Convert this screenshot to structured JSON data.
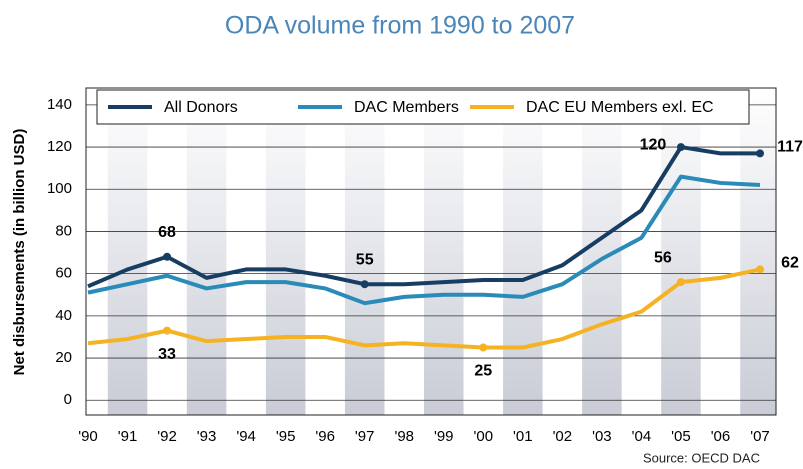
{
  "chart_data": {
    "type": "line",
    "title": "ODA volume from 1990 to 2007",
    "y_label": "Net disbursements (in billion USD)",
    "source": "Source: OECD DAC",
    "categories": [
      "'90",
      "'91",
      "'92",
      "'93",
      "'94",
      "'95",
      "'96",
      "'97",
      "'98",
      "'99",
      "'00",
      "'01",
      "'02",
      "'03",
      "'04",
      "'05",
      "'06",
      "'07"
    ],
    "series": [
      {
        "name": "All Donors",
        "color": "#173d63",
        "values": [
          54,
          62,
          68,
          58,
          62,
          62,
          59,
          55,
          55,
          56,
          57,
          57,
          64,
          77,
          90,
          120,
          117,
          117
        ]
      },
      {
        "name": "DAC Members",
        "color": "#2a8ab8",
        "values": [
          51,
          55,
          59,
          53,
          56,
          56,
          53,
          46,
          49,
          50,
          50,
          49,
          55,
          67,
          77,
          106,
          103,
          102
        ]
      },
      {
        "name": "DAC EU Members exl. EC",
        "color": "#f5b323",
        "values": [
          27,
          29,
          33,
          28,
          29,
          30,
          30,
          26,
          27,
          26,
          25,
          25,
          29,
          36,
          42,
          56,
          58,
          62
        ]
      }
    ],
    "ylim": [
      -7,
      148
    ],
    "yticks": [
      0,
      20,
      40,
      60,
      80,
      100,
      120,
      140
    ],
    "grid": true,
    "legend": "top"
  }
}
